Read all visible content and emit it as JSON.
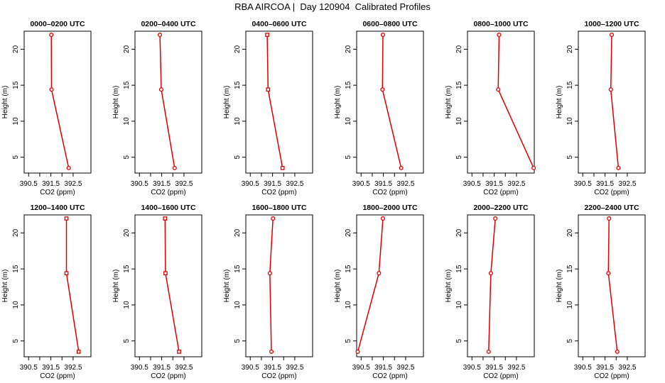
{
  "title": "RBA AIRCOA |  Day 120904  Calibrated Profiles",
  "colors": {
    "line": "#dd0000",
    "marker": "#dd0000",
    "axis": "#000000"
  },
  "chart_data": [
    {
      "type": "line",
      "title": "0000–0200 UTC",
      "xlabel": "CO2 (ppm)",
      "ylabel": "Height (m)",
      "xlim": [
        390.3,
        393.3
      ],
      "ylim": [
        2.8,
        22.5
      ],
      "xticks": [
        390.5,
        391.5,
        392.5
      ],
      "xticks_minor": [
        391.0,
        392.0
      ],
      "yticks": [
        5,
        10,
        15,
        20
      ],
      "x": [
        391.52,
        391.53,
        392.3
      ],
      "y": [
        22,
        14.4,
        3.5
      ],
      "marker": "circle"
    },
    {
      "type": "line",
      "title": "0200–0400 UTC",
      "xlabel": "CO2 (ppm)",
      "ylabel": "Height (m)",
      "xlim": [
        390.3,
        393.3
      ],
      "ylim": [
        2.8,
        22.5
      ],
      "xticks": [
        390.5,
        391.5,
        392.5
      ],
      "xticks_minor": [
        391.0,
        392.0
      ],
      "yticks": [
        5,
        10,
        15,
        20
      ],
      "x": [
        391.42,
        391.48,
        392.08
      ],
      "y": [
        22,
        14.4,
        3.5
      ],
      "marker": "circle"
    },
    {
      "type": "line",
      "title": "0400–0600 UTC",
      "xlabel": "CO2 (ppm)",
      "ylabel": "Height (m)",
      "xlim": [
        390.3,
        393.3
      ],
      "ylim": [
        2.8,
        22.5
      ],
      "xticks": [
        390.5,
        391.5,
        392.5
      ],
      "xticks_minor": [
        391.0,
        392.0
      ],
      "yticks": [
        5,
        10,
        15,
        20
      ],
      "x": [
        391.26,
        391.3,
        391.95
      ],
      "y": [
        22,
        14.4,
        3.5
      ],
      "marker": "square"
    },
    {
      "type": "line",
      "title": "0600–0800 UTC",
      "xlabel": "CO2 (ppm)",
      "ylabel": "Height (m)",
      "xlim": [
        390.3,
        393.3
      ],
      "ylim": [
        2.8,
        22.5
      ],
      "xticks": [
        390.5,
        391.5,
        392.5
      ],
      "xticks_minor": [
        391.0,
        392.0
      ],
      "yticks": [
        5,
        10,
        15,
        20
      ],
      "x": [
        391.48,
        391.46,
        392.3
      ],
      "y": [
        22,
        14.4,
        3.5
      ],
      "marker": "circle"
    },
    {
      "type": "line",
      "title": "0800–1000 UTC",
      "xlabel": "CO2 (ppm)",
      "ylabel": "Height (m)",
      "xlim": [
        390.3,
        393.3
      ],
      "ylim": [
        2.8,
        22.5
      ],
      "xticks": [
        390.5,
        391.5,
        392.5
      ],
      "xticks_minor": [
        391.0,
        392.0
      ],
      "yticks": [
        5,
        10,
        15,
        20
      ],
      "x": [
        391.72,
        391.68,
        393.27
      ],
      "y": [
        22,
        14.4,
        3.5
      ],
      "marker": "circle"
    },
    {
      "type": "line",
      "title": "1000–1200 UTC",
      "xlabel": "CO2 (ppm)",
      "ylabel": "Height (m)",
      "xlim": [
        390.3,
        393.3
      ],
      "ylim": [
        2.8,
        22.5
      ],
      "xticks": [
        390.5,
        391.5,
        392.5
      ],
      "xticks_minor": [
        391.0,
        392.0
      ],
      "yticks": [
        5,
        10,
        15,
        20
      ],
      "x": [
        391.8,
        391.76,
        392.1
      ],
      "y": [
        22,
        14.4,
        3.5
      ],
      "marker": "circle"
    },
    {
      "type": "line",
      "title": "1200–1400 UTC",
      "xlabel": "CO2 (ppm)",
      "ylabel": "Height (m)",
      "xlim": [
        390.3,
        393.3
      ],
      "ylim": [
        2.8,
        22.5
      ],
      "xticks": [
        390.5,
        391.5,
        392.5
      ],
      "xticks_minor": [
        391.0,
        392.0
      ],
      "yticks": [
        5,
        10,
        15,
        20
      ],
      "x": [
        392.2,
        392.2,
        392.75
      ],
      "y": [
        22,
        14.4,
        3.5
      ],
      "marker": "square"
    },
    {
      "type": "line",
      "title": "1400–1600 UTC",
      "xlabel": "CO2 (ppm)",
      "ylabel": "Height (m)",
      "xlim": [
        390.3,
        393.3
      ],
      "ylim": [
        2.8,
        22.5
      ],
      "xticks": [
        390.5,
        391.5,
        392.5
      ],
      "xticks_minor": [
        391.0,
        392.0
      ],
      "yticks": [
        5,
        10,
        15,
        20
      ],
      "x": [
        391.65,
        391.67,
        392.28
      ],
      "y": [
        22,
        14.4,
        3.5
      ],
      "marker": "square"
    },
    {
      "type": "line",
      "title": "1600–1800 UTC",
      "xlabel": "CO2 (ppm)",
      "ylabel": "Height (m)",
      "xlim": [
        390.3,
        393.3
      ],
      "ylim": [
        2.8,
        22.5
      ],
      "xticks": [
        390.5,
        391.5,
        392.5
      ],
      "xticks_minor": [
        391.0,
        392.0
      ],
      "yticks": [
        5,
        10,
        15,
        20
      ],
      "x": [
        391.52,
        391.38,
        391.45
      ],
      "y": [
        22,
        14.4,
        3.5
      ],
      "marker": "circle"
    },
    {
      "type": "line",
      "title": "1800–2000 UTC",
      "xlabel": "CO2 (ppm)",
      "ylabel": "Height (m)",
      "xlim": [
        390.3,
        393.3
      ],
      "ylim": [
        2.8,
        22.5
      ],
      "xticks": [
        390.5,
        391.5,
        392.5
      ],
      "xticks_minor": [
        391.0,
        392.0
      ],
      "yticks": [
        5,
        10,
        15,
        20
      ],
      "x": [
        391.48,
        391.3,
        390.35
      ],
      "y": [
        22,
        14.4,
        3.5
      ],
      "marker": "circle"
    },
    {
      "type": "line",
      "title": "2000–2200 UTC",
      "xlabel": "CO2 (ppm)",
      "ylabel": "Height (m)",
      "xlim": [
        390.3,
        393.3
      ],
      "ylim": [
        2.8,
        22.5
      ],
      "xticks": [
        390.5,
        391.5,
        392.5
      ],
      "xticks_minor": [
        391.0,
        392.0
      ],
      "yticks": [
        5,
        10,
        15,
        20
      ],
      "x": [
        391.55,
        391.35,
        391.25
      ],
      "y": [
        22,
        14.4,
        3.5
      ],
      "marker": "circle"
    },
    {
      "type": "line",
      "title": "2200–2400 UTC",
      "xlabel": "CO2 (ppm)",
      "ylabel": "Height (m)",
      "xlim": [
        390.3,
        393.3
      ],
      "ylim": [
        2.8,
        22.5
      ],
      "xticks": [
        390.5,
        391.5,
        392.5
      ],
      "xticks_minor": [
        391.0,
        392.0
      ],
      "yticks": [
        5,
        10,
        15,
        20
      ],
      "x": [
        391.68,
        391.65,
        392.05
      ],
      "y": [
        22,
        14.4,
        3.5
      ],
      "marker": "circle"
    }
  ]
}
